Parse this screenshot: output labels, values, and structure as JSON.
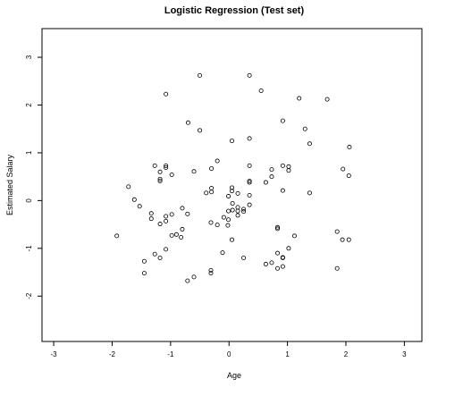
{
  "chart_data": {
    "type": "scatter",
    "title": "Logistic Regression (Test set)",
    "xlabel": "Age",
    "ylabel": "Estimated Salary",
    "xlim": [
      -3.2,
      3.3
    ],
    "ylim": [
      -2.95,
      3.6
    ],
    "xticks": [
      -3,
      -2,
      -1,
      0,
      1,
      2,
      3
    ],
    "yticks": [
      -2,
      -1,
      0,
      1,
      2,
      3
    ],
    "xtick_labels": [
      "-3",
      "-2",
      "-1",
      "0",
      "1",
      "2",
      "3"
    ],
    "ytick_labels": [
      "-2",
      "-1",
      "0",
      "1",
      "2",
      "3"
    ],
    "grid": false,
    "points": [
      {
        "x": -0.5,
        "y": 2.62
      },
      {
        "x": 0.35,
        "y": 2.62
      },
      {
        "x": -1.08,
        "y": 2.23
      },
      {
        "x": 0.55,
        "y": 2.3
      },
      {
        "x": 1.2,
        "y": 2.14
      },
      {
        "x": 1.68,
        "y": 2.12
      },
      {
        "x": -0.7,
        "y": 1.63
      },
      {
        "x": 0.92,
        "y": 1.67
      },
      {
        "x": -0.5,
        "y": 1.47
      },
      {
        "x": 1.3,
        "y": 1.5
      },
      {
        "x": 0.05,
        "y": 1.25
      },
      {
        "x": 0.35,
        "y": 1.3
      },
      {
        "x": 1.38,
        "y": 1.19
      },
      {
        "x": 2.06,
        "y": 1.12
      },
      {
        "x": -0.2,
        "y": 0.83
      },
      {
        "x": -1.27,
        "y": 0.73
      },
      {
        "x": -1.08,
        "y": 0.73
      },
      {
        "x": -1.08,
        "y": 0.69
      },
      {
        "x": 0.35,
        "y": 0.73
      },
      {
        "x": 0.92,
        "y": 0.73
      },
      {
        "x": -0.3,
        "y": 0.67
      },
      {
        "x": 1.02,
        "y": 0.71
      },
      {
        "x": 1.02,
        "y": 0.63
      },
      {
        "x": 0.73,
        "y": 0.65
      },
      {
        "x": 1.95,
        "y": 0.66
      },
      {
        "x": -1.18,
        "y": 0.6
      },
      {
        "x": -0.6,
        "y": 0.61
      },
      {
        "x": -0.98,
        "y": 0.54
      },
      {
        "x": 0.73,
        "y": 0.5
      },
      {
        "x": 2.05,
        "y": 0.52
      },
      {
        "x": -1.18,
        "y": 0.45
      },
      {
        "x": -1.18,
        "y": 0.41
      },
      {
        "x": 0.35,
        "y": 0.41
      },
      {
        "x": 0.35,
        "y": 0.38
      },
      {
        "x": 0.63,
        "y": 0.38
      },
      {
        "x": -1.72,
        "y": 0.29
      },
      {
        "x": -0.3,
        "y": 0.26
      },
      {
        "x": 0.05,
        "y": 0.27
      },
      {
        "x": 0.05,
        "y": 0.2
      },
      {
        "x": -0.3,
        "y": 0.18
      },
      {
        "x": -0.39,
        "y": 0.16
      },
      {
        "x": 0.15,
        "y": 0.15
      },
      {
        "x": 0.92,
        "y": 0.21
      },
      {
        "x": 1.38,
        "y": 0.16
      },
      {
        "x": 0.35,
        "y": 0.11
      },
      {
        "x": -0.01,
        "y": 0.09
      },
      {
        "x": -1.62,
        "y": 0.02
      },
      {
        "x": -1.53,
        "y": -0.12
      },
      {
        "x": 0.06,
        "y": -0.06
      },
      {
        "x": 0.15,
        "y": -0.14
      },
      {
        "x": 0.25,
        "y": -0.18
      },
      {
        "x": 0.35,
        "y": -0.09
      },
      {
        "x": -0.8,
        "y": -0.16
      },
      {
        "x": -0.01,
        "y": -0.22
      },
      {
        "x": 0.06,
        "y": -0.2
      },
      {
        "x": 0.15,
        "y": -0.22
      },
      {
        "x": 0.25,
        "y": -0.23
      },
      {
        "x": -1.33,
        "y": -0.27
      },
      {
        "x": -0.98,
        "y": -0.29
      },
      {
        "x": -0.71,
        "y": -0.28
      },
      {
        "x": -1.08,
        "y": -0.33
      },
      {
        "x": -0.09,
        "y": -0.35
      },
      {
        "x": -0.01,
        "y": -0.4
      },
      {
        "x": 0.15,
        "y": -0.31
      },
      {
        "x": -1.33,
        "y": -0.38
      },
      {
        "x": -1.08,
        "y": -0.43
      },
      {
        "x": -0.31,
        "y": -0.46
      },
      {
        "x": -0.2,
        "y": -0.51
      },
      {
        "x": -0.02,
        "y": -0.52
      },
      {
        "x": 0.83,
        "y": -0.56
      },
      {
        "x": 0.83,
        "y": -0.59
      },
      {
        "x": -1.18,
        "y": -0.49
      },
      {
        "x": -0.8,
        "y": -0.6
      },
      {
        "x": -0.9,
        "y": -0.71
      },
      {
        "x": -0.98,
        "y": -0.73
      },
      {
        "x": -0.82,
        "y": -0.77
      },
      {
        "x": -1.92,
        "y": -0.74
      },
      {
        "x": 1.12,
        "y": -0.74
      },
      {
        "x": 0.05,
        "y": -0.82
      },
      {
        "x": 1.85,
        "y": -0.65
      },
      {
        "x": 1.94,
        "y": -0.82
      },
      {
        "x": 2.05,
        "y": -0.82
      },
      {
        "x": -1.08,
        "y": -1.02
      },
      {
        "x": 1.02,
        "y": -1.0
      },
      {
        "x": -1.27,
        "y": -1.12
      },
      {
        "x": -1.18,
        "y": -1.2
      },
      {
        "x": -0.11,
        "y": -1.09
      },
      {
        "x": 0.83,
        "y": -1.1
      },
      {
        "x": 0.25,
        "y": -1.2
      },
      {
        "x": 0.92,
        "y": -1.2
      },
      {
        "x": 0.92,
        "y": -1.19
      },
      {
        "x": -1.45,
        "y": -1.27
      },
      {
        "x": 0.73,
        "y": -1.3
      },
      {
        "x": 0.63,
        "y": -1.33
      },
      {
        "x": 0.92,
        "y": -1.38
      },
      {
        "x": 0.83,
        "y": -1.42
      },
      {
        "x": 1.85,
        "y": -1.42
      },
      {
        "x": -0.31,
        "y": -1.46
      },
      {
        "x": -0.31,
        "y": -1.52
      },
      {
        "x": -1.45,
        "y": -1.52
      },
      {
        "x": -0.6,
        "y": -1.6
      },
      {
        "x": -0.71,
        "y": -1.68
      }
    ]
  }
}
